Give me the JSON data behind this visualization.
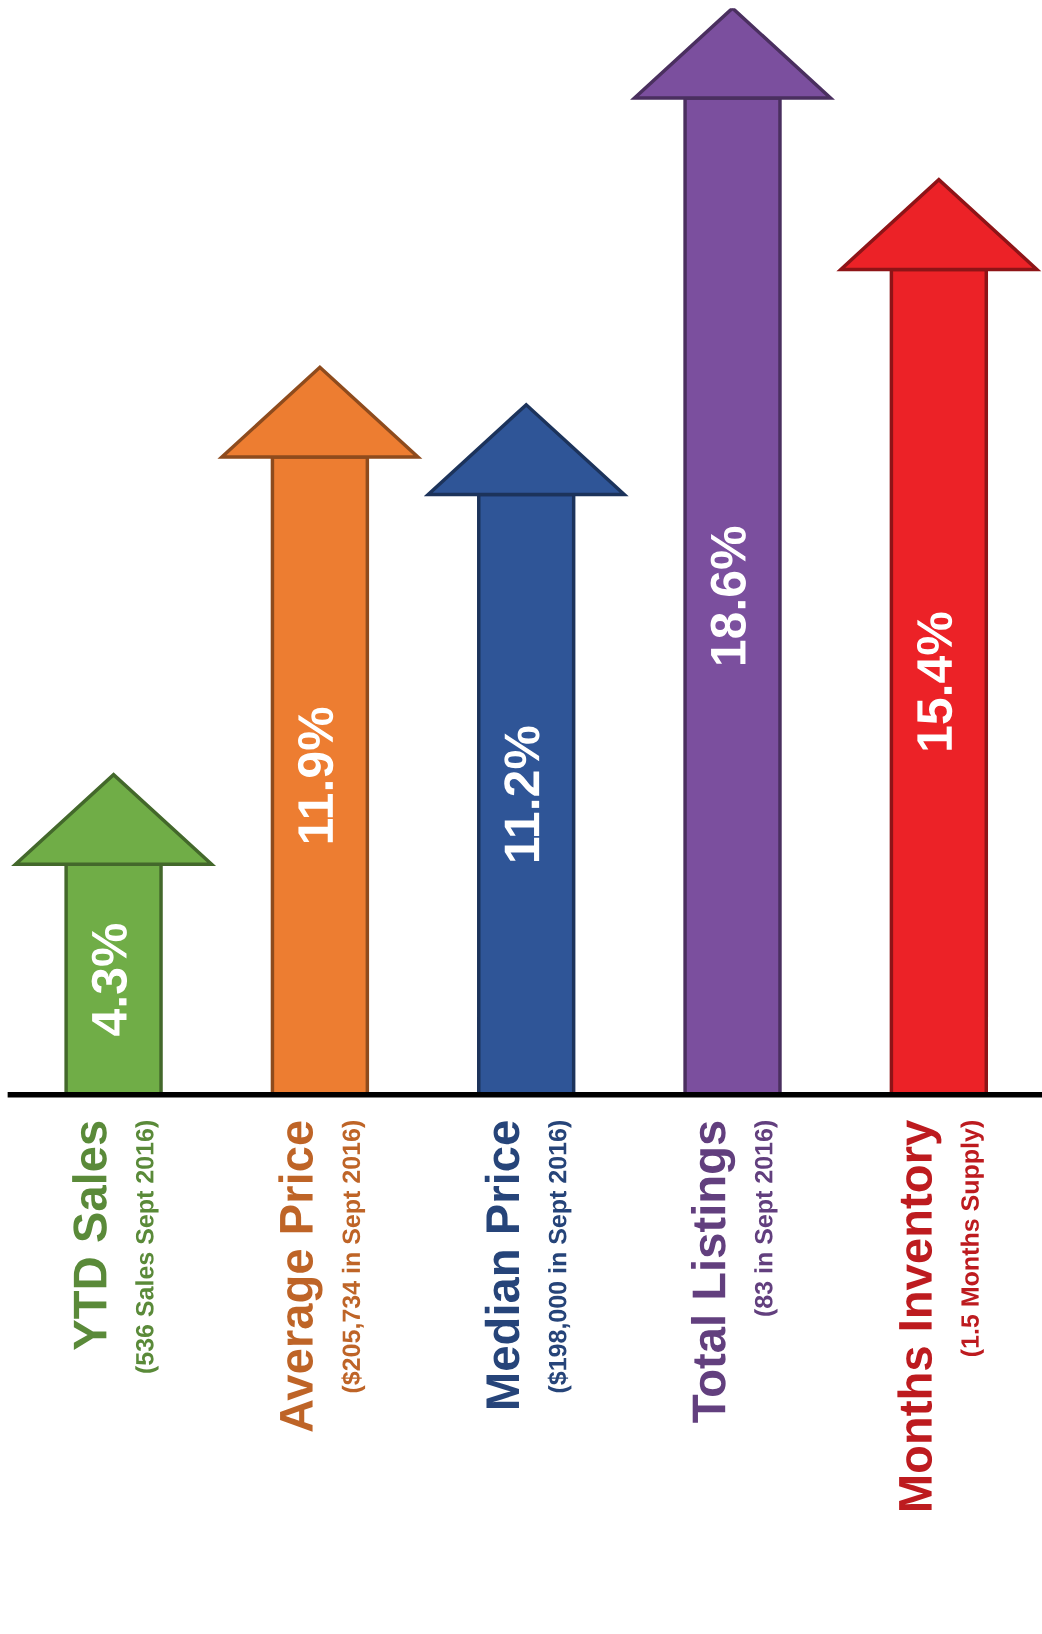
{
  "chart_data": {
    "type": "bar",
    "categories": [
      "YTD Sales\n(536 Sales Sept 2016)",
      "Average Price\n($205,734 in Sept 2016)",
      "Median Price\n($198,000 in Sept 2016)",
      "Total Listings\n(83 in Sept 2016)",
      "Months Inventory\n(1.5 Months Supply)"
    ],
    "values": [
      4.3,
      11.9,
      11.2,
      18.6,
      15.4
    ],
    "colors": [
      "#70ad47",
      "#ed7d31",
      "#2f5597",
      "#7b4f9e",
      "#ec2227"
    ],
    "value_labels": [
      "4.3%",
      "11.9%",
      "11.2%",
      "18.6%",
      "15.4%"
    ]
  }
}
